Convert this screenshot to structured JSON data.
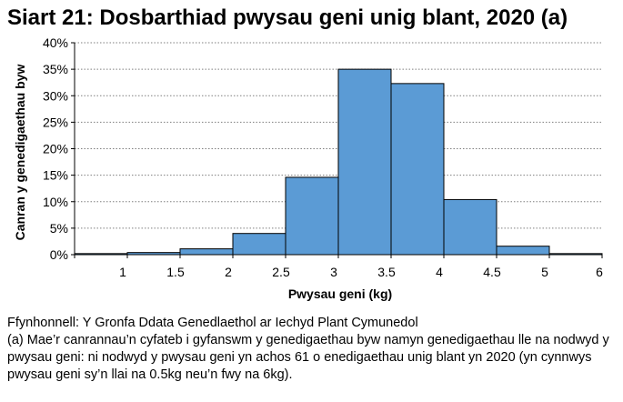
{
  "chart_data": {
    "type": "bar",
    "title": "Siart 21: Dosbarthiad pwysau geni unig blant, 2020 (a)",
    "xlabel": "Pwysau geni (kg)",
    "ylabel": "Canran y genedigaethau byw",
    "bins": [
      [
        0.5,
        1.0
      ],
      [
        1.0,
        1.5
      ],
      [
        1.5,
        2.0
      ],
      [
        2.0,
        2.5
      ],
      [
        2.5,
        3.0
      ],
      [
        3.0,
        3.5
      ],
      [
        3.5,
        4.0
      ],
      [
        4.0,
        4.5
      ],
      [
        4.5,
        5.0
      ],
      [
        5.0,
        5.5
      ]
    ],
    "values": [
      0.2,
      0.4,
      1.1,
      4.0,
      14.6,
      35.0,
      32.3,
      10.4,
      1.6,
      0.2
    ],
    "xlim": [
      0.5,
      5.5
    ],
    "ylim": [
      0,
      40
    ],
    "xticks": [
      1,
      1.5,
      2,
      2.5,
      3,
      3.5,
      4,
      4.5,
      5,
      6
    ],
    "xtick_labels": [
      "1",
      "1.5",
      "2",
      "2.5",
      "3",
      "3.5",
      "4",
      "4.5",
      "5",
      "6"
    ],
    "yticks": [
      0,
      5,
      10,
      15,
      20,
      25,
      30,
      35,
      40
    ],
    "ytick_labels": [
      "0%",
      "5%",
      "10%",
      "15%",
      "20%",
      "25%",
      "30%",
      "35%",
      "40%"
    ],
    "grid": true,
    "bar_color": "#5b9bd5",
    "bar_edge_color": "#000000"
  },
  "notes": {
    "source": "Ffynhonnell: Y Gronfa Ddata Genedlaethol ar Iechyd Plant Cymunedol",
    "footnote": "(a) Mae’r canrannau’n cyfateb i gyfanswm y genedigaethau byw namyn genedigaethau lle na nodwyd y pwysau geni: ni nodwyd y pwysau geni yn achos 61 o enedigaethau unig blant yn 2020 (yn cynnwys pwysau geni sy’n llai na 0.5kg neu’n fwy na 6kg)."
  }
}
